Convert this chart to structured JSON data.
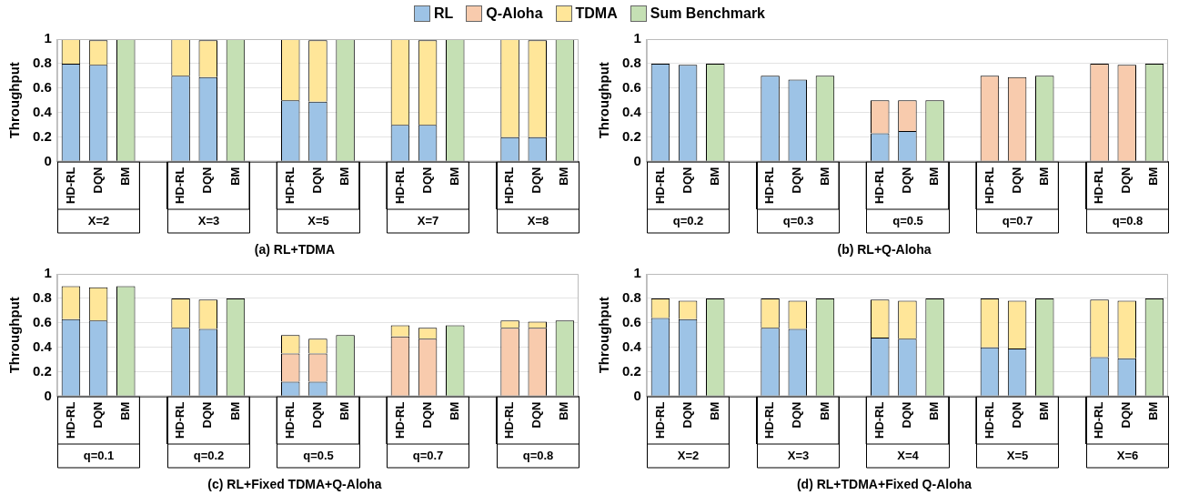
{
  "chart_data": [
    {
      "type": "bar",
      "title": "(a) RL+TDMA",
      "ylabel": "Throughput",
      "stacked": true,
      "legend": "top",
      "grid": "y",
      "ylim": [
        0,
        1
      ],
      "yticks": [
        0,
        0.2,
        0.4,
        0.6,
        0.8,
        1
      ],
      "categories": [
        "HD-RL",
        "DQN",
        "BM",
        null,
        "HD-RL",
        "DQN",
        "BM",
        null,
        "HD-RL",
        "DQN",
        "BM",
        null,
        "HD-RL",
        "DQN",
        "BM",
        null,
        "HD-RL",
        "DQN",
        "BM"
      ],
      "annotations": [
        "X=2",
        "X=3",
        "X=5",
        "X=7",
        "X=8"
      ],
      "series": [
        {
          "name": "RL",
          "color": "#9dc3e6",
          "values": [
            0.8,
            0.79,
            null,
            null,
            0.7,
            0.69,
            null,
            null,
            0.5,
            0.49,
            null,
            null,
            0.3,
            0.3,
            null,
            null,
            0.2,
            0.2,
            null
          ]
        },
        {
          "name": "TDMA",
          "color": "#ffe699",
          "values": [
            0.2,
            0.2,
            null,
            null,
            0.3,
            0.3,
            null,
            null,
            0.5,
            0.5,
            null,
            null,
            0.7,
            0.69,
            null,
            null,
            0.8,
            0.79,
            null
          ]
        },
        {
          "name": "Sum Benchmark",
          "color": "#c5e0b4",
          "values": [
            null,
            null,
            1,
            null,
            null,
            null,
            1,
            null,
            null,
            null,
            1,
            null,
            null,
            null,
            1,
            null,
            null,
            null,
            1
          ]
        }
      ]
    },
    {
      "type": "bar",
      "title": "(b) RL+Q-Aloha",
      "ylabel": "Throughput",
      "stacked": true,
      "grid": "y",
      "ylim": [
        0,
        1
      ],
      "yticks": [
        0,
        0.2,
        0.4,
        0.6,
        0.8,
        1
      ],
      "categories": [
        "HD-RL",
        "DQN",
        "BM",
        null,
        "HD-RL",
        "DQN",
        "BM",
        null,
        "HD-RL",
        "DQN",
        "BM",
        null,
        "HD-RL",
        "DQN",
        "BM",
        null,
        "HD-RL",
        "DQN",
        "BM"
      ],
      "annotations": [
        "q=0.2",
        "q=0.3",
        "q=0.5",
        "q=0.7",
        "q=0.8"
      ],
      "series": [
        {
          "name": "RL",
          "color": "#9dc3e6",
          "values": [
            0.8,
            0.79,
            null,
            null,
            0.7,
            0.67,
            null,
            null,
            0.23,
            0.25,
            null,
            null,
            null,
            null,
            null,
            null,
            null,
            null,
            null
          ]
        },
        {
          "name": "Q-Aloha",
          "color": "#f8cbad",
          "values": [
            null,
            null,
            null,
            null,
            null,
            null,
            null,
            null,
            0.27,
            0.25,
            null,
            null,
            0.7,
            0.69,
            null,
            null,
            0.8,
            0.79,
            null
          ]
        },
        {
          "name": "Sum Benchmark",
          "color": "#c5e0b4",
          "values": [
            null,
            null,
            0.8,
            null,
            null,
            null,
            0.7,
            null,
            null,
            null,
            0.5,
            null,
            null,
            null,
            0.7,
            null,
            null,
            null,
            0.8
          ]
        }
      ]
    },
    {
      "type": "bar",
      "title": "(c) RL+Fixed TDMA+Q-Aloha",
      "ylabel": "Throughput",
      "stacked": true,
      "grid": "y",
      "ylim": [
        0,
        1
      ],
      "yticks": [
        0,
        0.2,
        0.4,
        0.6,
        0.8,
        1
      ],
      "categories": [
        "HD-RL",
        "DQN",
        "BM",
        null,
        "HD-RL",
        "DQN",
        "BM",
        null,
        "HD-RL",
        "DQN",
        "BM",
        null,
        "HD-RL",
        "DQN",
        "BM",
        null,
        "HD-RL",
        "DQN",
        "BM"
      ],
      "annotations": [
        "q=0.1",
        "q=0.2",
        "q=0.5",
        "q=0.7",
        "q=0.8"
      ],
      "series": [
        {
          "name": "RL",
          "color": "#9dc3e6",
          "values": [
            0.63,
            0.62,
            null,
            null,
            0.56,
            0.55,
            null,
            null,
            0.12,
            0.12,
            null,
            null,
            null,
            null,
            null,
            null,
            null,
            null,
            null
          ]
        },
        {
          "name": "Q-Aloha",
          "color": "#f8cbad",
          "values": [
            null,
            null,
            null,
            null,
            null,
            null,
            null,
            null,
            0.23,
            0.23,
            null,
            null,
            0.49,
            0.47,
            null,
            null,
            0.56,
            0.56,
            null
          ]
        },
        {
          "name": "TDMA",
          "color": "#ffe699",
          "values": [
            0.27,
            0.27,
            null,
            null,
            0.24,
            0.24,
            null,
            null,
            0.15,
            0.12,
            null,
            null,
            0.09,
            0.09,
            null,
            null,
            0.06,
            0.05,
            null
          ]
        },
        {
          "name": "Sum Benchmark",
          "color": "#c5e0b4",
          "values": [
            null,
            null,
            0.9,
            null,
            null,
            null,
            0.8,
            null,
            null,
            null,
            0.5,
            null,
            null,
            null,
            0.58,
            null,
            null,
            null,
            0.62
          ]
        }
      ]
    },
    {
      "type": "bar",
      "title": "(d) RL+TDMA+Fixed Q-Aloha",
      "ylabel": "Throughput",
      "stacked": true,
      "grid": "y",
      "ylim": [
        0,
        1
      ],
      "yticks": [
        0,
        0.2,
        0.4,
        0.6,
        0.8,
        1
      ],
      "categories": [
        "HD-RL",
        "DQN",
        "BM",
        null,
        "HD-RL",
        "DQN",
        "BM",
        null,
        "HD-RL",
        "DQN",
        "BM",
        null,
        "HD-RL",
        "DQN",
        "BM",
        null,
        "HD-RL",
        "DQN",
        "BM"
      ],
      "annotations": [
        "X=2",
        "X=3",
        "X=4",
        "X=5",
        "X=6"
      ],
      "series": [
        {
          "name": "RL",
          "color": "#9dc3e6",
          "values": [
            0.64,
            0.63,
            null,
            null,
            0.56,
            0.55,
            null,
            null,
            0.48,
            0.47,
            null,
            null,
            0.4,
            0.39,
            null,
            null,
            0.32,
            0.31,
            null
          ]
        },
        {
          "name": "TDMA",
          "color": "#ffe699",
          "values": [
            0.16,
            0.15,
            null,
            null,
            0.24,
            0.23,
            null,
            null,
            0.31,
            0.31,
            null,
            null,
            0.4,
            0.39,
            null,
            null,
            0.47,
            0.47,
            null
          ]
        },
        {
          "name": "Sum Benchmark",
          "color": "#c5e0b4",
          "values": [
            null,
            null,
            0.8,
            null,
            null,
            null,
            0.8,
            null,
            null,
            null,
            0.8,
            null,
            null,
            null,
            0.8,
            null,
            null,
            null,
            0.8
          ]
        }
      ]
    }
  ]
}
